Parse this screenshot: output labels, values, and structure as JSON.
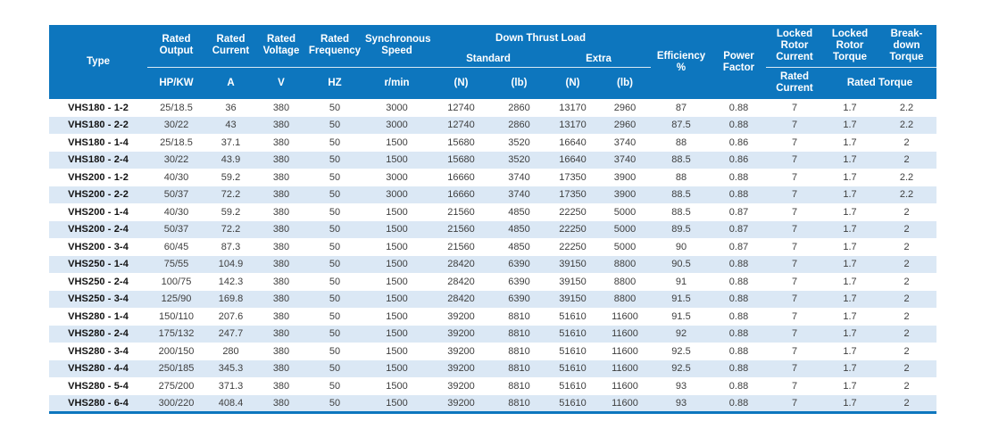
{
  "colors": {
    "header_bg": "#0d76be",
    "stripe_bg": "#dbe8f5",
    "accent_line": "#0d76be",
    "header_text": "#ffffff",
    "body_text": "#3e3e3e",
    "type_text": "#121212"
  },
  "table": {
    "header": {
      "type_label": "Type",
      "rated_output": "Rated Output",
      "rated_current": "Rated Current",
      "rated_voltage": "Rated Voltage",
      "rated_frequency": "Rated Frequency",
      "synchronous_speed": "Synchronous Speed",
      "down_thrust_load": "Down Thrust Load",
      "standard": "Standard",
      "extra": "Extra",
      "efficiency": "Efficiency %",
      "power_factor": "Power Factor",
      "locked_rotor_current": "Locked Rotor Current",
      "locked_rotor_torque": "Locked Rotor Torque",
      "breakdown_torque": "Break-down Torque",
      "units": {
        "output": "HP/KW",
        "current": "A",
        "voltage": "V",
        "frequency": "HZ",
        "speed": "r/min",
        "std_n": "(N)",
        "std_lb": "(lb)",
        "extra_n": "(N)",
        "extra_lb": "(lb)",
        "locked_rotor_current": "Rated Current",
        "rated_torque": "Rated Torque"
      }
    },
    "rows": [
      {
        "type": "VHS180 - 1-2",
        "values": [
          "25/18.5",
          "36",
          "380",
          "50",
          "3000",
          "12740",
          "2860",
          "13170",
          "2960",
          "87",
          "0.88",
          "7",
          "1.7",
          "2.2"
        ]
      },
      {
        "type": "VHS180 - 2-2",
        "values": [
          "30/22",
          "43",
          "380",
          "50",
          "3000",
          "12740",
          "2860",
          "13170",
          "2960",
          "87.5",
          "0.88",
          "7",
          "1.7",
          "2.2"
        ]
      },
      {
        "type": "VHS180 - 1-4",
        "values": [
          "25/18.5",
          "37.1",
          "380",
          "50",
          "1500",
          "15680",
          "3520",
          "16640",
          "3740",
          "88",
          "0.86",
          "7",
          "1.7",
          "2"
        ]
      },
      {
        "type": "VHS180 - 2-4",
        "values": [
          "30/22",
          "43.9",
          "380",
          "50",
          "1500",
          "15680",
          "3520",
          "16640",
          "3740",
          "88.5",
          "0.86",
          "7",
          "1.7",
          "2"
        ]
      },
      {
        "type": "VHS200 - 1-2",
        "values": [
          "40/30",
          "59.2",
          "380",
          "50",
          "3000",
          "16660",
          "3740",
          "17350",
          "3900",
          "88",
          "0.88",
          "7",
          "1.7",
          "2.2"
        ]
      },
      {
        "type": "VHS200 - 2-2",
        "values": [
          "50/37",
          "72.2",
          "380",
          "50",
          "3000",
          "16660",
          "3740",
          "17350",
          "3900",
          "88.5",
          "0.88",
          "7",
          "1.7",
          "2.2"
        ]
      },
      {
        "type": "VHS200 - 1-4",
        "values": [
          "40/30",
          "59.2",
          "380",
          "50",
          "1500",
          "21560",
          "4850",
          "22250",
          "5000",
          "88.5",
          "0.87",
          "7",
          "1.7",
          "2"
        ]
      },
      {
        "type": "VHS200 - 2-4",
        "values": [
          "50/37",
          "72.2",
          "380",
          "50",
          "1500",
          "21560",
          "4850",
          "22250",
          "5000",
          "89.5",
          "0.87",
          "7",
          "1.7",
          "2"
        ]
      },
      {
        "type": "VHS200 - 3-4",
        "values": [
          "60/45",
          "87.3",
          "380",
          "50",
          "1500",
          "21560",
          "4850",
          "22250",
          "5000",
          "90",
          "0.87",
          "7",
          "1.7",
          "2"
        ]
      },
      {
        "type": "VHS250 - 1-4",
        "values": [
          "75/55",
          "104.9",
          "380",
          "50",
          "1500",
          "28420",
          "6390",
          "39150",
          "8800",
          "90.5",
          "0.88",
          "7",
          "1.7",
          "2"
        ]
      },
      {
        "type": "VHS250 - 2-4",
        "values": [
          "100/75",
          "142.3",
          "380",
          "50",
          "1500",
          "28420",
          "6390",
          "39150",
          "8800",
          "91",
          "0.88",
          "7",
          "1.7",
          "2"
        ]
      },
      {
        "type": "VHS250 - 3-4",
        "values": [
          "125/90",
          "169.8",
          "380",
          "50",
          "1500",
          "28420",
          "6390",
          "39150",
          "8800",
          "91.5",
          "0.88",
          "7",
          "1.7",
          "2"
        ]
      },
      {
        "type": "VHS280 - 1-4",
        "values": [
          "150/110",
          "207.6",
          "380",
          "50",
          "1500",
          "39200",
          "8810",
          "51610",
          "11600",
          "91.5",
          "0.88",
          "7",
          "1.7",
          "2"
        ]
      },
      {
        "type": "VHS280 - 2-4",
        "values": [
          "175/132",
          "247.7",
          "380",
          "50",
          "1500",
          "39200",
          "8810",
          "51610",
          "11600",
          "92",
          "0.88",
          "7",
          "1.7",
          "2"
        ]
      },
      {
        "type": "VHS280 - 3-4",
        "values": [
          "200/150",
          "280",
          "380",
          "50",
          "1500",
          "39200",
          "8810",
          "51610",
          "11600",
          "92.5",
          "0.88",
          "7",
          "1.7",
          "2"
        ]
      },
      {
        "type": "VHS280 - 4-4",
        "values": [
          "250/185",
          "345.3",
          "380",
          "50",
          "1500",
          "39200",
          "8810",
          "51610",
          "11600",
          "92.5",
          "0.88",
          "7",
          "1.7",
          "2"
        ]
      },
      {
        "type": "VHS280 - 5-4",
        "values": [
          "275/200",
          "371.3",
          "380",
          "50",
          "1500",
          "39200",
          "8810",
          "51610",
          "11600",
          "93",
          "0.88",
          "7",
          "1.7",
          "2"
        ]
      },
      {
        "type": "VHS280 - 6-4",
        "values": [
          "300/220",
          "408.4",
          "380",
          "50",
          "1500",
          "39200",
          "8810",
          "51610",
          "11600",
          "93",
          "0.88",
          "7",
          "1.7",
          "2"
        ]
      }
    ]
  }
}
